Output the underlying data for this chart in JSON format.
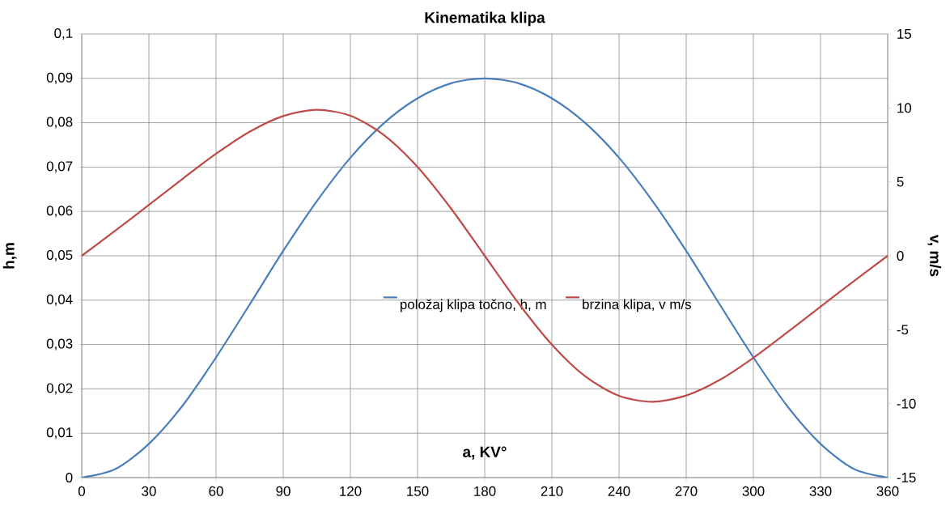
{
  "chart_data": {
    "type": "line",
    "title": "Kinematika klipa",
    "xlabel": "a, KV°",
    "ylabel": "h,m",
    "y2label": "v, m/s",
    "x": [
      0,
      15,
      30,
      45,
      60,
      75,
      90,
      105,
      120,
      135,
      150,
      165,
      180,
      195,
      210,
      225,
      240,
      255,
      270,
      285,
      300,
      315,
      330,
      345,
      360
    ],
    "series": [
      {
        "name": "položaj klipa točno, h, m",
        "color": "#4a7ebb",
        "values": [
          0,
          0.0019,
          0.0076,
          0.0162,
          0.0271,
          0.039,
          0.0511,
          0.0623,
          0.0721,
          0.0799,
          0.0855,
          0.0889,
          0.09,
          0.0889,
          0.0855,
          0.0799,
          0.0721,
          0.0623,
          0.0511,
          0.039,
          0.0271,
          0.0162,
          0.0076,
          0.0019,
          0
        ]
      },
      {
        "name": "brzina klipa, v m/s",
        "color": "#be4b48",
        "axis": "y2",
        "values": [
          0,
          1.7,
          3.44,
          5.2,
          6.9,
          8.39,
          9.45,
          9.87,
          9.47,
          8.17,
          6.01,
          3.19,
          0,
          -3.19,
          -6.01,
          -8.17,
          -9.47,
          -9.87,
          -9.45,
          -8.39,
          -6.9,
          -5.2,
          -3.44,
          -1.7,
          0
        ]
      }
    ],
    "xlim": [
      0,
      360
    ],
    "xticks": [
      0,
      30,
      60,
      90,
      120,
      150,
      180,
      210,
      240,
      270,
      300,
      330,
      360
    ],
    "ylim": [
      0,
      0.1
    ],
    "yticks": [
      0,
      {
        "value": 0.01,
        "label": "0,01"
      },
      {
        "value": 0.02,
        "label": "0,02"
      },
      {
        "value": 0.03,
        "label": "0,03"
      },
      {
        "value": 0.04,
        "label": "0,04"
      },
      {
        "value": 0.05,
        "label": "0,05"
      },
      {
        "value": 0.06,
        "label": "0,06"
      },
      {
        "value": 0.07,
        "label": "0,07"
      },
      {
        "value": 0.08,
        "label": "0,08"
      },
      {
        "value": 0.09,
        "label": "0,09"
      },
      {
        "value": 0.1,
        "label": "0,1"
      }
    ],
    "y2lim": [
      -15,
      15
    ],
    "y2ticks": [
      -15,
      -10,
      -5,
      0,
      5,
      10,
      15
    ],
    "grid": true,
    "legend": "center",
    "marker": "none",
    "line_style": "solid"
  }
}
